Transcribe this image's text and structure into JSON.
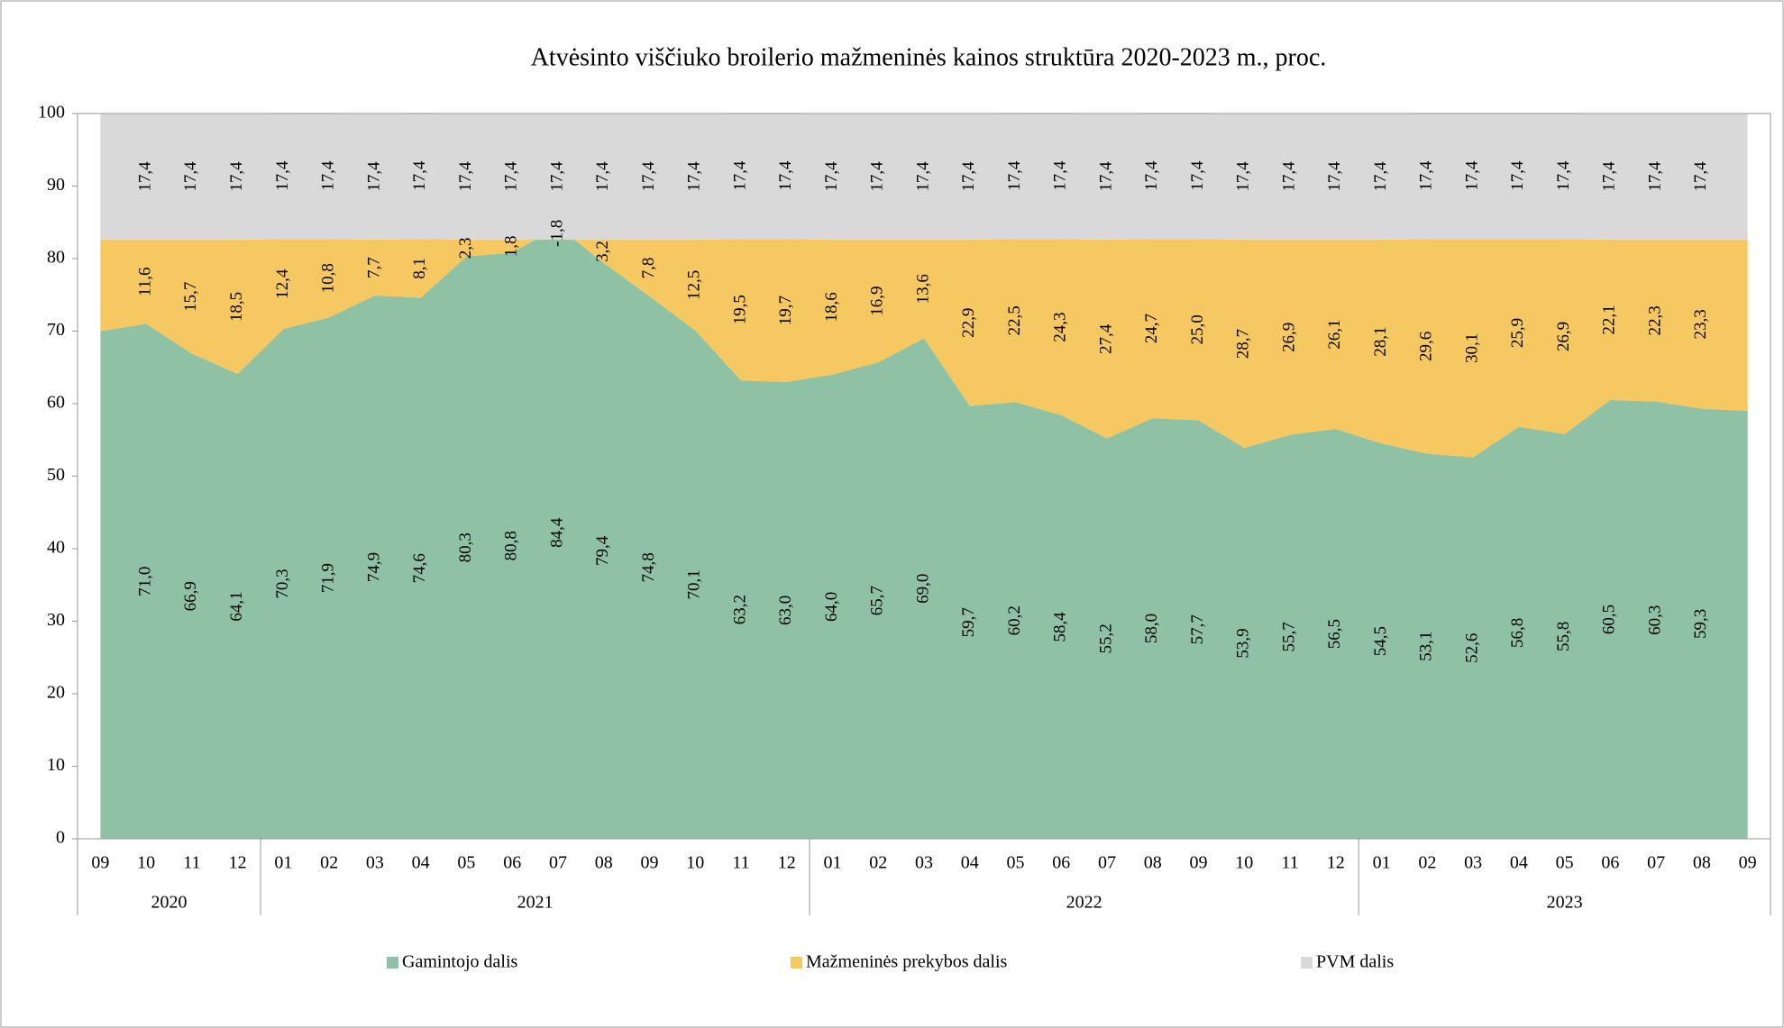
{
  "chart_data": {
    "type": "stacked_area",
    "title": "Atvėsinto viščiuko broilerio mažmeninės kainos struktūra 2020-2023 m., proc.",
    "categories": [
      "09",
      "10",
      "11",
      "12",
      "01",
      "02",
      "03",
      "04",
      "05",
      "06",
      "07",
      "08",
      "09",
      "10",
      "11",
      "12",
      "01",
      "02",
      "03",
      "04",
      "05",
      "06",
      "07",
      "08",
      "09",
      "10",
      "11",
      "12",
      "01",
      "02",
      "03",
      "04",
      "05",
      "06",
      "07",
      "08",
      "09"
    ],
    "x_groups": [
      {
        "label": "2020",
        "count": 4
      },
      {
        "label": "2021",
        "count": 12
      },
      {
        "label": "2022",
        "count": 12
      },
      {
        "label": "2023",
        "count": 9
      }
    ],
    "ylim": [
      0,
      100
    ],
    "yticks": [
      0,
      10,
      20,
      30,
      40,
      50,
      60,
      70,
      80,
      90,
      100
    ],
    "legend": "bottom",
    "series": [
      {
        "name": "Gamintojo dalis",
        "color": "#8fc1a5",
        "values": [
          70.0,
          71.0,
          66.9,
          64.1,
          70.3,
          71.9,
          74.9,
          74.6,
          80.3,
          80.8,
          84.4,
          79.4,
          74.8,
          70.1,
          63.2,
          63.0,
          64.0,
          65.7,
          69.0,
          59.7,
          60.2,
          58.4,
          55.2,
          58.0,
          57.7,
          53.9,
          55.7,
          56.5,
          54.5,
          53.1,
          52.6,
          56.8,
          55.8,
          60.5,
          60.3,
          59.3,
          59.0
        ],
        "value_labels": [
          null,
          "71,0",
          "66,9",
          "64,1",
          "70,3",
          "71,9",
          "74,9",
          "74,6",
          "80,3",
          "80,8",
          "84,4",
          "79,4",
          "74,8",
          "70,1",
          "63,2",
          "63,0",
          "64,0",
          "65,7",
          "69,0",
          "59,7",
          "60,2",
          "58,4",
          "55,2",
          "58,0",
          "57,7",
          "53,9",
          "55,7",
          "56,5",
          "54,5",
          "53,1",
          "52,6",
          "56,8",
          "55,8",
          "60,5",
          "60,3",
          "59,3",
          null
        ]
      },
      {
        "name": "Mažmeninės prekybos dalis",
        "color": "#f5c862",
        "values": [
          12.6,
          11.6,
          15.7,
          18.5,
          12.4,
          10.8,
          7.7,
          8.1,
          2.3,
          1.8,
          -1.8,
          3.2,
          7.8,
          12.5,
          19.5,
          19.7,
          18.6,
          16.9,
          13.6,
          22.9,
          22.5,
          24.3,
          27.4,
          24.7,
          25.0,
          28.7,
          26.9,
          26.1,
          28.1,
          29.6,
          30.1,
          25.9,
          26.9,
          22.1,
          22.3,
          23.3,
          23.6
        ],
        "value_labels": [
          null,
          "11,6",
          "15,7",
          "18,5",
          "12,4",
          "10,8",
          "7,7",
          "8,1",
          "2,3",
          "1,8",
          "-1,8",
          "3,2",
          "7,8",
          "12,5",
          "19,5",
          "19,7",
          "18,6",
          "16,9",
          "13,6",
          "22,9",
          "22,5",
          "24,3",
          "27,4",
          "24,7",
          "25,0",
          "28,7",
          "26,9",
          "26,1",
          "28,1",
          "29,6",
          "30,1",
          "25,9",
          "26,9",
          "22,1",
          "22,3",
          "23,3",
          null
        ]
      },
      {
        "name": "PVM dalis",
        "color": "#d9d9d9",
        "values": [
          17.4,
          17.4,
          17.4,
          17.4,
          17.4,
          17.4,
          17.4,
          17.4,
          17.4,
          17.4,
          17.4,
          17.4,
          17.4,
          17.4,
          17.4,
          17.4,
          17.4,
          17.4,
          17.4,
          17.4,
          17.4,
          17.4,
          17.4,
          17.4,
          17.4,
          17.4,
          17.4,
          17.4,
          17.4,
          17.4,
          17.4,
          17.4,
          17.4,
          17.4,
          17.4,
          17.4,
          17.4
        ],
        "value_labels": [
          null,
          "17,4",
          "17,4",
          "17,4",
          "17,4",
          "17,4",
          "17,4",
          "17,4",
          "17,4",
          "17,4",
          "17,4",
          "17,4",
          "17,4",
          "17,4",
          "17,4",
          "17,4",
          "17,4",
          "17,4",
          "17,4",
          "17,4",
          "17,4",
          "17,4",
          "17,4",
          "17,4",
          "17,4",
          "17,4",
          "17,4",
          "17,4",
          "17,4",
          "17,4",
          "17,4",
          "17,4",
          "17,4",
          "17,4",
          "17,4",
          "17,4",
          null
        ]
      }
    ]
  }
}
